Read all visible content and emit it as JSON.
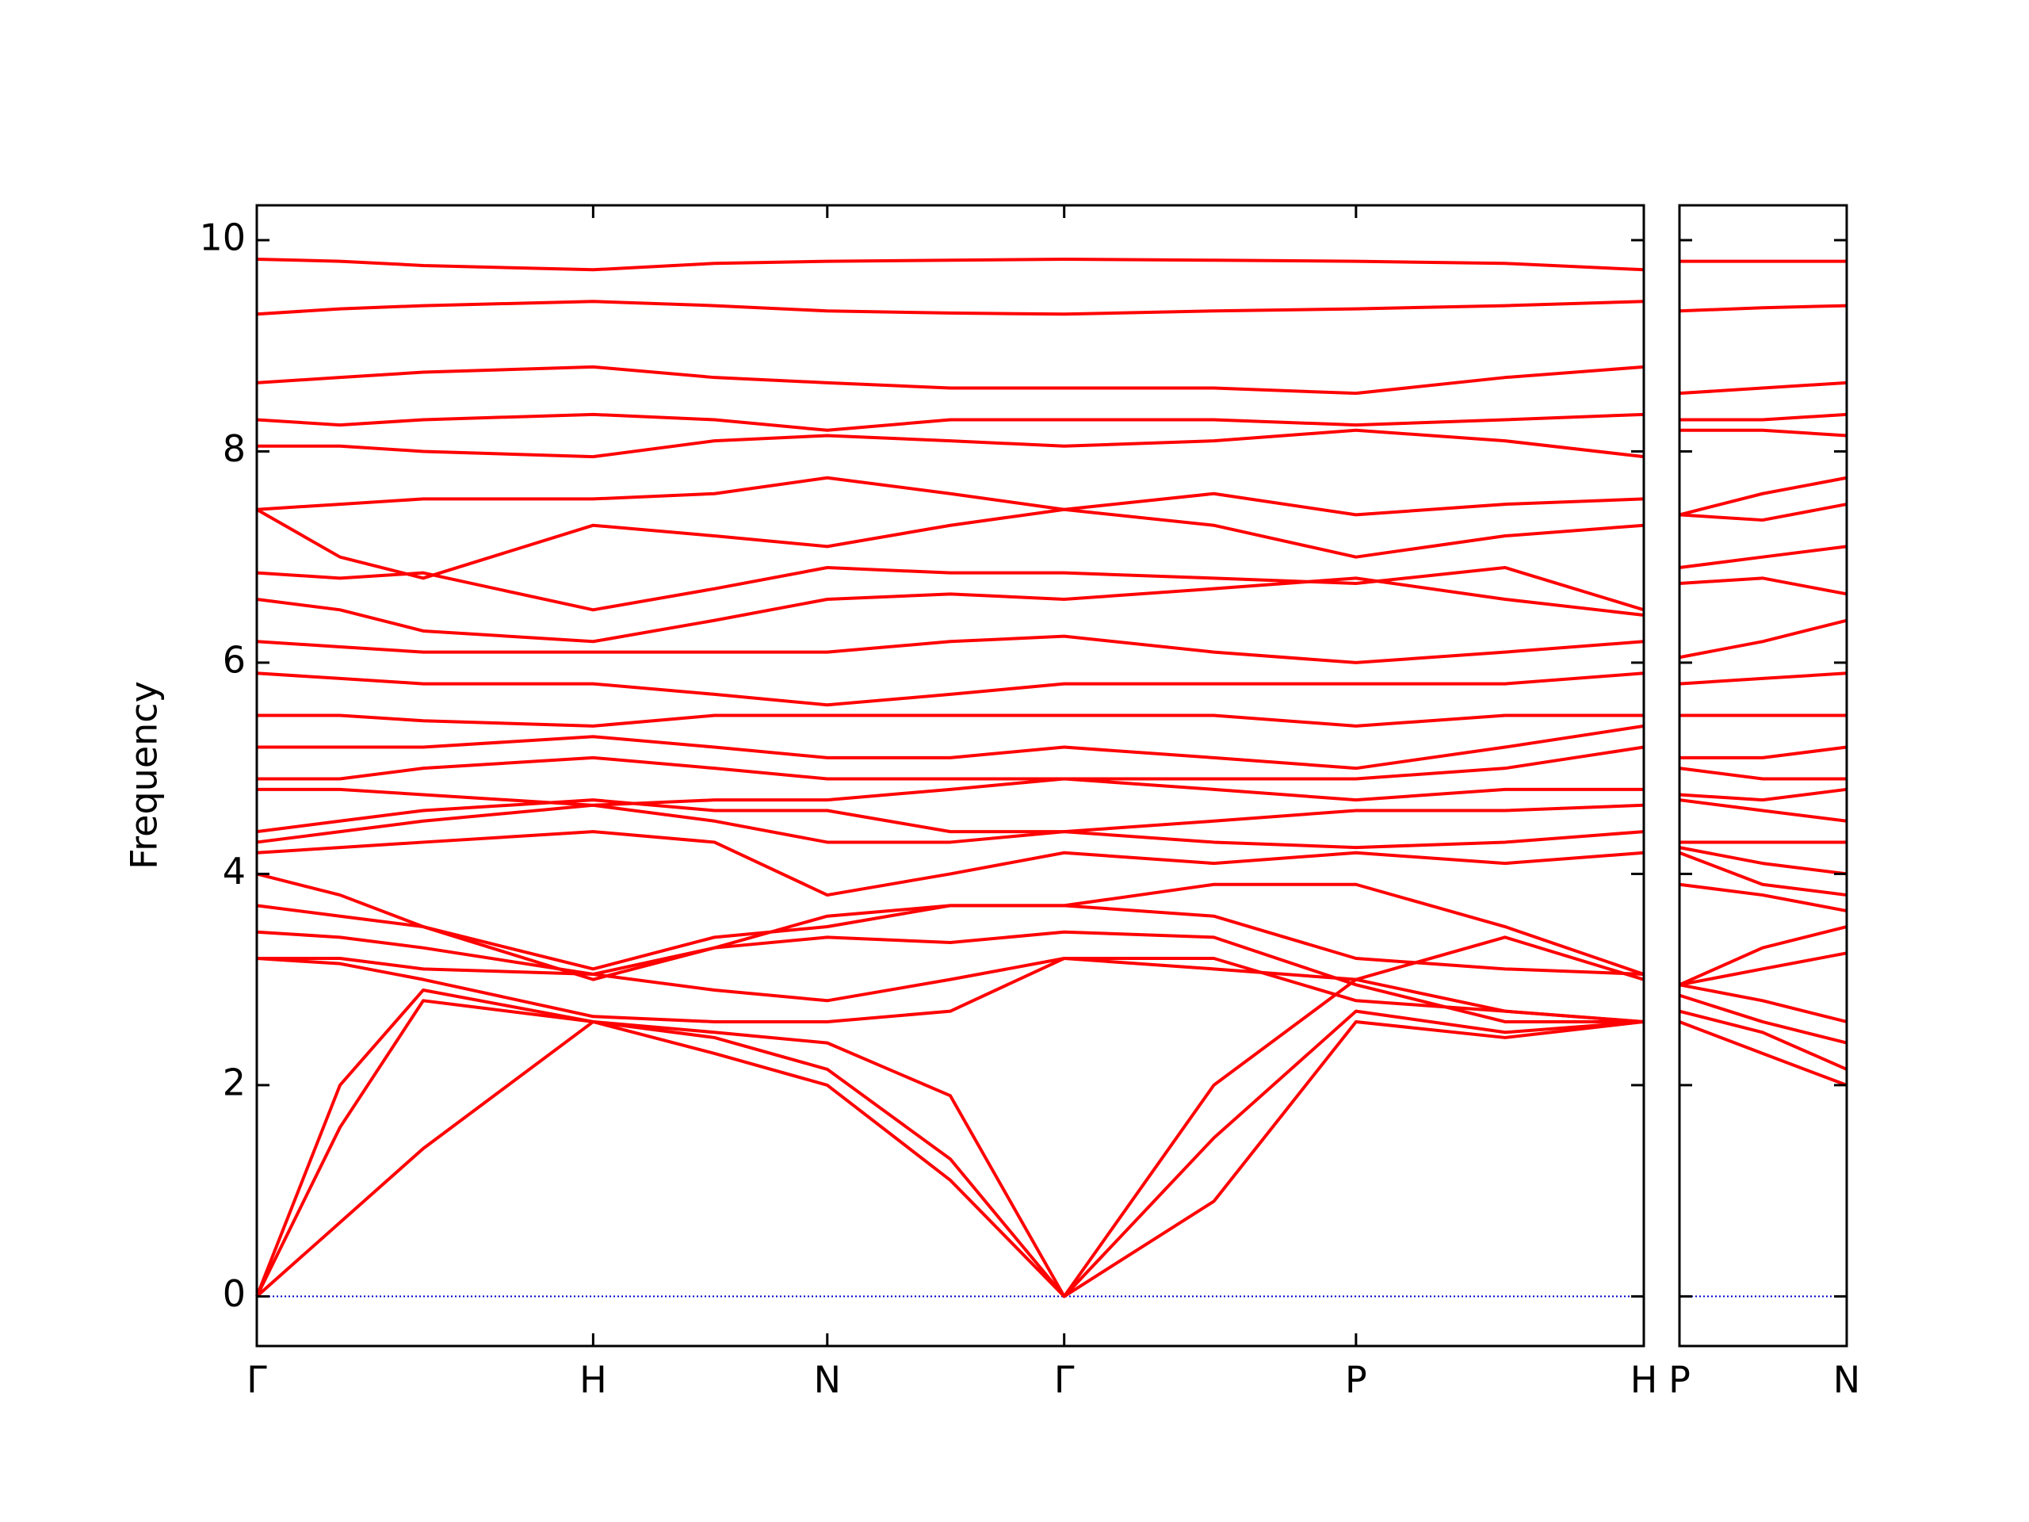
{
  "chart_data": [
    {
      "type": "line",
      "ylabel": "Frequency",
      "ylim": [
        -0.47,
        10.33
      ],
      "yticks": [
        0,
        2,
        4,
        6,
        8,
        10
      ],
      "show_ytick_labels": true,
      "xlim": [
        0,
        1.0
      ],
      "xticks": [
        {
          "value": 0,
          "label": "Γ"
        },
        {
          "value": 0.2425,
          "label": "H"
        },
        {
          "value": 0.4113,
          "label": "N"
        },
        {
          "value": 0.5821,
          "label": "Γ"
        },
        {
          "value": 0.7925,
          "label": "P"
        },
        {
          "value": 1.0,
          "label": "H"
        }
      ],
      "hline": {
        "value": 0,
        "color": "#0000cc"
      },
      "x": [
        0,
        0.06,
        0.12,
        0.2425,
        0.33,
        0.4113,
        0.5,
        0.5821,
        0.69,
        0.7925,
        0.9,
        1.0
      ],
      "series": [
        {
          "color": "#ff0000",
          "values": [
            0,
            0.7,
            1.4,
            2.6,
            2.3,
            2.0,
            1.1,
            0,
            0.9,
            2.6,
            2.45,
            2.6
          ]
        },
        {
          "color": "#ff0000",
          "values": [
            0,
            1.6,
            2.8,
            2.6,
            2.45,
            2.15,
            1.3,
            0,
            1.5,
            2.7,
            2.5,
            2.6
          ]
        },
        {
          "color": "#ff0000",
          "values": [
            0,
            2.0,
            2.9,
            2.6,
            2.5,
            2.4,
            1.9,
            0,
            2.0,
            3.0,
            2.7,
            2.6
          ]
        },
        {
          "color": "#ff0000",
          "values": [
            3.2,
            3.15,
            3.0,
            2.65,
            2.6,
            2.6,
            2.7,
            3.2,
            3.2,
            2.8,
            2.7,
            2.6
          ]
        },
        {
          "color": "#ff0000",
          "values": [
            3.2,
            3.2,
            3.1,
            3.05,
            2.9,
            2.8,
            3.0,
            3.2,
            3.1,
            3.0,
            3.4,
            3.0
          ]
        },
        {
          "color": "#ff0000",
          "values": [
            3.45,
            3.4,
            3.3,
            3.05,
            3.3,
            3.4,
            3.35,
            3.45,
            3.4,
            2.95,
            2.6,
            2.6
          ]
        },
        {
          "color": "#ff0000",
          "values": [
            3.7,
            3.6,
            3.5,
            3.1,
            3.4,
            3.5,
            3.7,
            3.7,
            3.6,
            3.2,
            3.1,
            3.05
          ]
        },
        {
          "color": "#ff0000",
          "values": [
            4.0,
            3.8,
            3.5,
            3.0,
            3.3,
            3.6,
            3.7,
            3.7,
            3.9,
            3.9,
            3.5,
            3.05
          ]
        },
        {
          "color": "#ff0000",
          "values": [
            4.2,
            4.25,
            4.3,
            4.4,
            4.3,
            3.8,
            4.0,
            4.2,
            4.1,
            4.2,
            4.1,
            4.2
          ]
        },
        {
          "color": "#ff0000",
          "values": [
            4.3,
            4.4,
            4.5,
            4.65,
            4.5,
            4.3,
            4.3,
            4.4,
            4.3,
            4.25,
            4.3,
            4.4
          ]
        },
        {
          "color": "#ff0000",
          "values": [
            4.4,
            4.5,
            4.6,
            4.7,
            4.6,
            4.6,
            4.4,
            4.4,
            4.5,
            4.6,
            4.6,
            4.65
          ]
        },
        {
          "color": "#ff0000",
          "values": [
            4.8,
            4.8,
            4.75,
            4.65,
            4.7,
            4.7,
            4.8,
            4.9,
            4.8,
            4.7,
            4.8,
            4.8
          ]
        },
        {
          "color": "#ff0000",
          "values": [
            4.9,
            4.9,
            5.0,
            5.1,
            5.0,
            4.9,
            4.9,
            4.9,
            4.9,
            4.9,
            5.0,
            5.2
          ]
        },
        {
          "color": "#ff0000",
          "values": [
            5.2,
            5.2,
            5.2,
            5.3,
            5.2,
            5.1,
            5.1,
            5.2,
            5.1,
            5.0,
            5.2,
            5.4
          ]
        },
        {
          "color": "#ff0000",
          "values": [
            5.5,
            5.5,
            5.45,
            5.4,
            5.5,
            5.5,
            5.5,
            5.5,
            5.5,
            5.4,
            5.5,
            5.5
          ]
        },
        {
          "color": "#ff0000",
          "values": [
            5.9,
            5.85,
            5.8,
            5.8,
            5.7,
            5.6,
            5.7,
            5.8,
            5.8,
            5.8,
            5.8,
            5.9
          ]
        },
        {
          "color": "#ff0000",
          "values": [
            6.2,
            6.15,
            6.1,
            6.1,
            6.1,
            6.1,
            6.2,
            6.25,
            6.1,
            6.0,
            6.1,
            6.2
          ]
        },
        {
          "color": "#ff0000",
          "values": [
            6.6,
            6.5,
            6.3,
            6.2,
            6.4,
            6.6,
            6.65,
            6.6,
            6.7,
            6.8,
            6.6,
            6.45
          ]
        },
        {
          "color": "#ff0000",
          "values": [
            6.85,
            6.8,
            6.85,
            6.5,
            6.7,
            6.9,
            6.85,
            6.85,
            6.8,
            6.75,
            6.9,
            6.5
          ]
        },
        {
          "color": "#ff0000",
          "values": [
            7.45,
            7.0,
            6.8,
            7.3,
            7.2,
            7.1,
            7.3,
            7.45,
            7.3,
            7.0,
            7.2,
            7.3
          ]
        },
        {
          "color": "#ff0000",
          "values": [
            7.45,
            7.5,
            7.55,
            7.55,
            7.6,
            7.75,
            7.6,
            7.45,
            7.6,
            7.4,
            7.5,
            7.55
          ]
        },
        {
          "color": "#ff0000",
          "values": [
            8.05,
            8.05,
            8.0,
            7.95,
            8.1,
            8.15,
            8.1,
            8.05,
            8.1,
            8.2,
            8.1,
            7.95
          ]
        },
        {
          "color": "#ff0000",
          "values": [
            8.3,
            8.25,
            8.3,
            8.35,
            8.3,
            8.2,
            8.3,
            8.3,
            8.3,
            8.25,
            8.3,
            8.35
          ]
        },
        {
          "color": "#ff0000",
          "values": [
            8.65,
            8.7,
            8.75,
            8.8,
            8.7,
            8.65,
            8.6,
            8.6,
            8.6,
            8.55,
            8.7,
            8.8
          ]
        },
        {
          "color": "#ff0000",
          "values": [
            9.3,
            9.35,
            9.38,
            9.42,
            9.38,
            9.33,
            9.31,
            9.3,
            9.33,
            9.35,
            9.38,
            9.42
          ]
        },
        {
          "color": "#ff0000",
          "values": [
            9.82,
            9.8,
            9.76,
            9.72,
            9.78,
            9.8,
            9.81,
            9.82,
            9.81,
            9.8,
            9.78,
            9.72
          ]
        }
      ]
    },
    {
      "type": "line",
      "ylim": [
        -0.47,
        10.33
      ],
      "yticks": [
        0,
        2,
        4,
        6,
        8,
        10
      ],
      "show_ytick_labels": false,
      "xlim": [
        0,
        0.1208
      ],
      "xticks": [
        {
          "value": 0,
          "label": "P"
        },
        {
          "value": 0.1208,
          "label": "N"
        }
      ],
      "hline": {
        "value": 0,
        "color": "#0000cc"
      },
      "x": [
        0,
        0.06,
        0.1208
      ],
      "series": [
        {
          "color": "#ff0000",
          "values": [
            2.6,
            2.3,
            2.0
          ]
        },
        {
          "color": "#ff0000",
          "values": [
            2.7,
            2.5,
            2.15
          ]
        },
        {
          "color": "#ff0000",
          "values": [
            2.85,
            2.6,
            2.4
          ]
        },
        {
          "color": "#ff0000",
          "values": [
            2.95,
            2.8,
            2.6
          ]
        },
        {
          "color": "#ff0000",
          "values": [
            2.95,
            3.1,
            3.25
          ]
        },
        {
          "color": "#ff0000",
          "values": [
            2.95,
            3.3,
            3.5
          ]
        },
        {
          "color": "#ff0000",
          "values": [
            3.9,
            3.8,
            3.65
          ]
        },
        {
          "color": "#ff0000",
          "values": [
            4.2,
            3.9,
            3.8
          ]
        },
        {
          "color": "#ff0000",
          "values": [
            4.25,
            4.1,
            4.0
          ]
        },
        {
          "color": "#ff0000",
          "values": [
            4.3,
            4.3,
            4.3
          ]
        },
        {
          "color": "#ff0000",
          "values": [
            4.7,
            4.6,
            4.5
          ]
        },
        {
          "color": "#ff0000",
          "values": [
            4.75,
            4.7,
            4.8
          ]
        },
        {
          "color": "#ff0000",
          "values": [
            5.0,
            4.9,
            4.9
          ]
        },
        {
          "color": "#ff0000",
          "values": [
            5.1,
            5.1,
            5.2
          ]
        },
        {
          "color": "#ff0000",
          "values": [
            5.5,
            5.5,
            5.5
          ]
        },
        {
          "color": "#ff0000",
          "values": [
            5.8,
            5.85,
            5.9
          ]
        },
        {
          "color": "#ff0000",
          "values": [
            6.05,
            6.2,
            6.4
          ]
        },
        {
          "color": "#ff0000",
          "values": [
            6.75,
            6.8,
            6.65
          ]
        },
        {
          "color": "#ff0000",
          "values": [
            6.9,
            7.0,
            7.1
          ]
        },
        {
          "color": "#ff0000",
          "values": [
            7.4,
            7.35,
            7.5
          ]
        },
        {
          "color": "#ff0000",
          "values": [
            7.4,
            7.6,
            7.75
          ]
        },
        {
          "color": "#ff0000",
          "values": [
            8.2,
            8.2,
            8.15
          ]
        },
        {
          "color": "#ff0000",
          "values": [
            8.3,
            8.3,
            8.35
          ]
        },
        {
          "color": "#ff0000",
          "values": [
            8.55,
            8.6,
            8.65
          ]
        },
        {
          "color": "#ff0000",
          "values": [
            9.33,
            9.36,
            9.38
          ]
        },
        {
          "color": "#ff0000",
          "values": [
            9.8,
            9.8,
            9.8
          ]
        }
      ]
    }
  ]
}
